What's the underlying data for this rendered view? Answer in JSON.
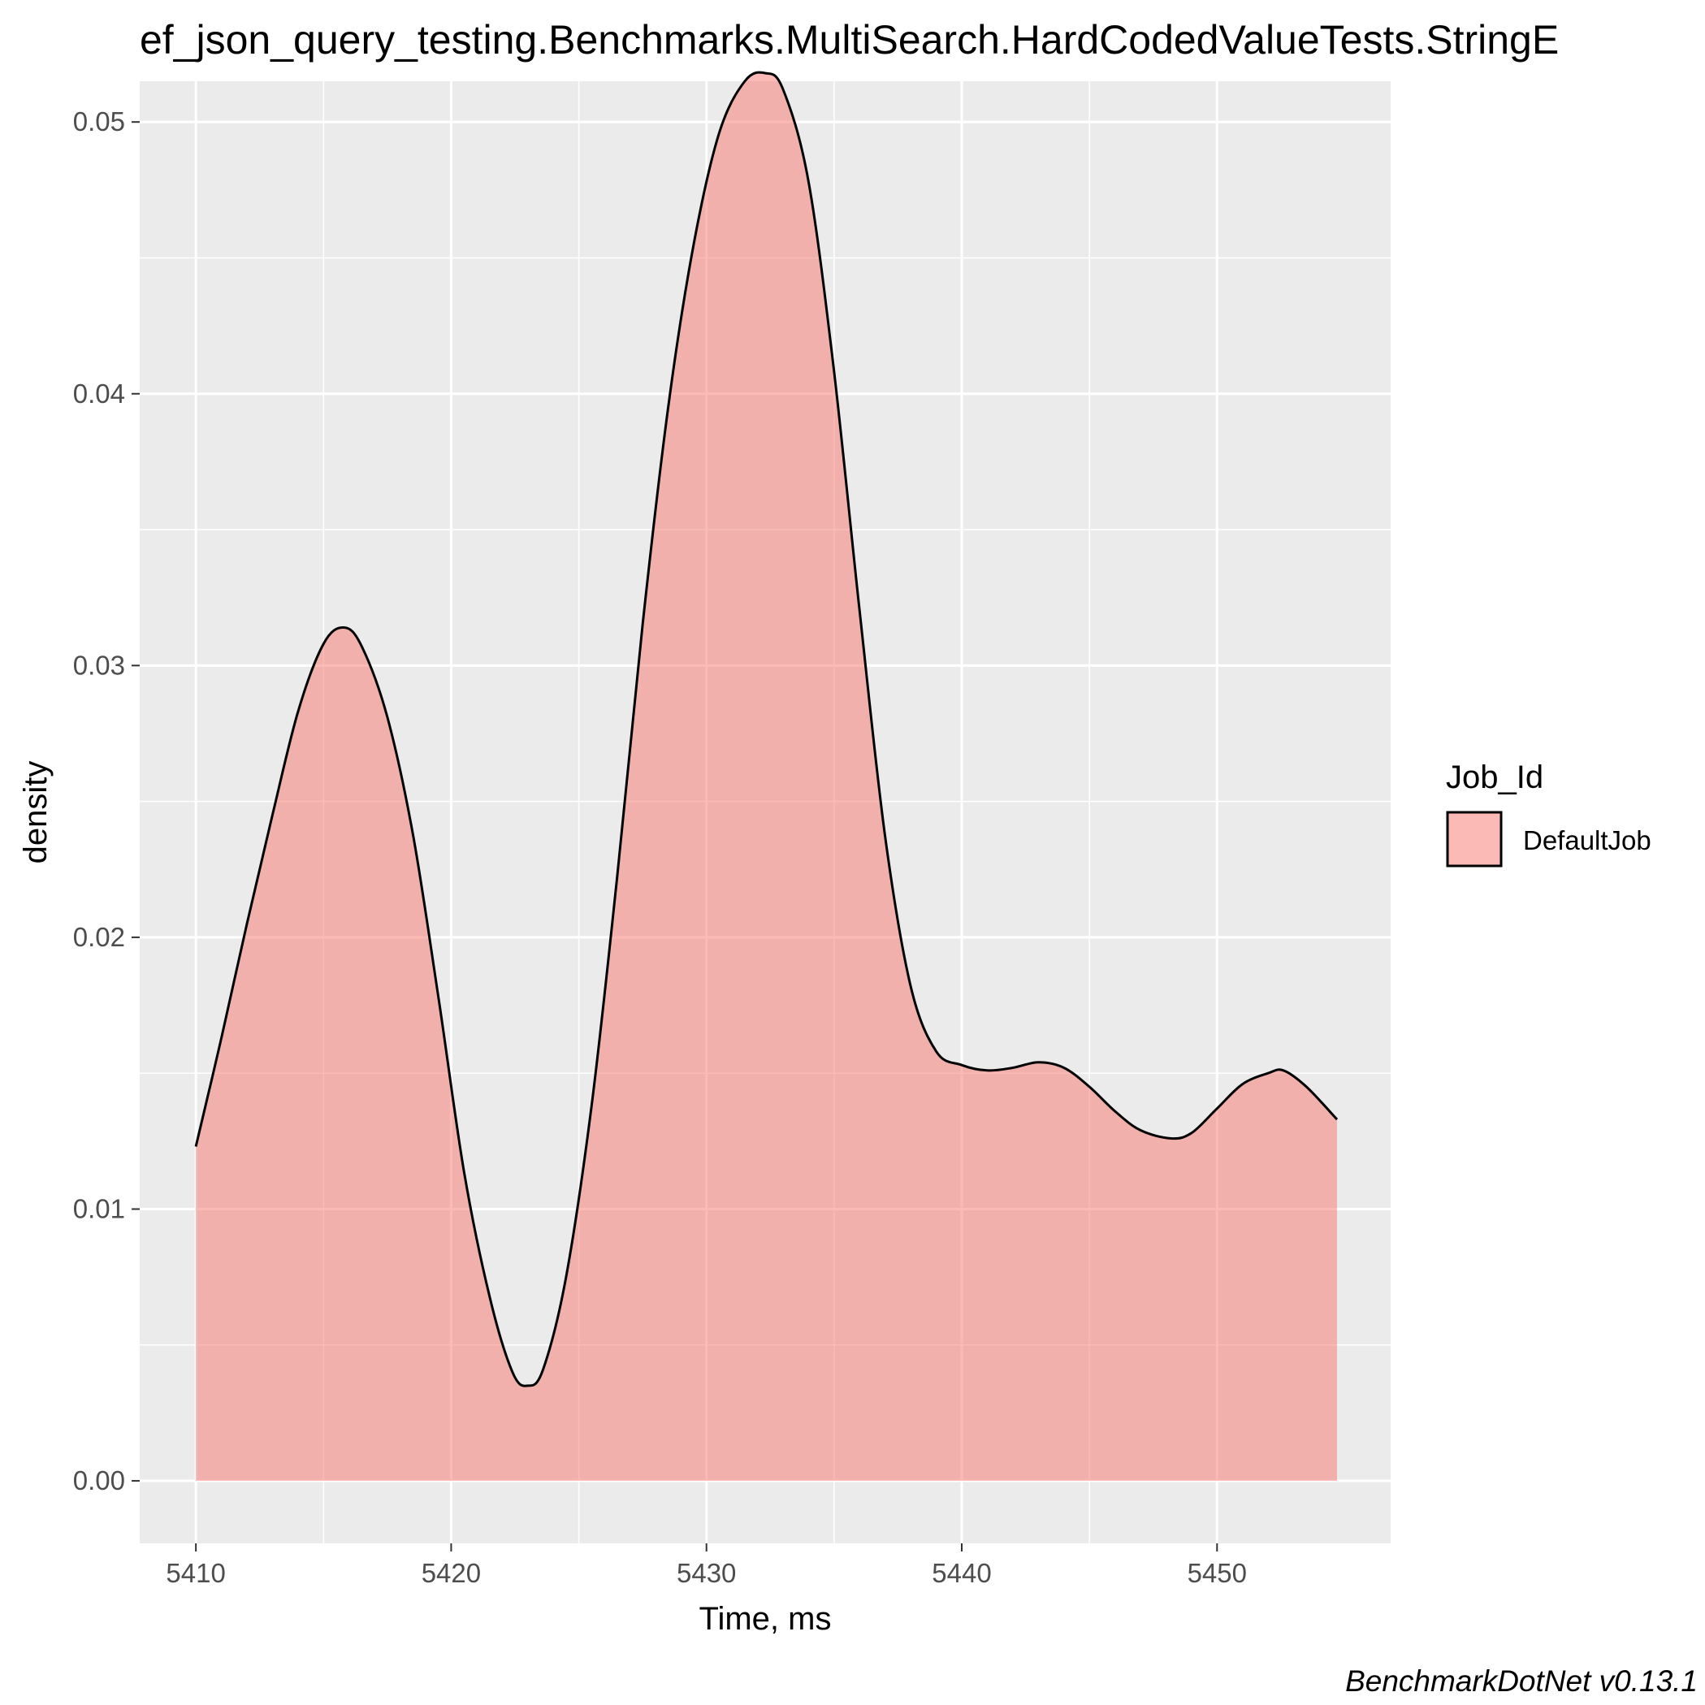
{
  "chart_data": {
    "type": "area",
    "title": "ef_json_query_testing.Benchmarks.MultiSearch.HardCodedValueTests.StringE",
    "xlabel": "Time, ms",
    "ylabel": "density",
    "caption": "BenchmarkDotNet v0.13.1",
    "xlim": [
      5407.8,
      5456.8
    ],
    "ylim": [
      -0.0023,
      0.0515
    ],
    "x_ticks": [
      5410,
      5420,
      5430,
      5440,
      5450
    ],
    "x_tick_labels": [
      "5410",
      "5420",
      "5430",
      "5440",
      "5450"
    ],
    "y_ticks": [
      0,
      0.01,
      0.02,
      0.03,
      0.04,
      0.05
    ],
    "y_tick_labels": [
      "0.00",
      "0.01",
      "0.02",
      "0.03",
      "0.04",
      "0.05"
    ],
    "grid": true,
    "legend": {
      "title": "Job_Id",
      "position": "right",
      "entries": [
        "DefaultJob"
      ]
    },
    "series": [
      {
        "name": "DefaultJob",
        "fill": "#F8766D",
        "fill_opacity": 0.5,
        "line_color": "#000000",
        "x": [
          5410,
          5411,
          5412,
          5413,
          5414,
          5415,
          5415.8,
          5416.5,
          5417.5,
          5418.5,
          5419.5,
          5420.5,
          5421.5,
          5422.4,
          5423,
          5423.6,
          5424.5,
          5425.5,
          5426.5,
          5427.5,
          5428.5,
          5429.5,
          5430.5,
          5431.5,
          5432.3,
          5433,
          5434,
          5435,
          5436,
          5437,
          5438,
          5439,
          5440,
          5441,
          5442,
          5443,
          5444,
          5445,
          5446,
          5447,
          5448.2,
          5449,
          5450,
          5451,
          5452,
          5452.6,
          5453.5,
          5454.7
        ],
        "y": [
          0.0123,
          0.0163,
          0.0205,
          0.0245,
          0.0283,
          0.0308,
          0.0314,
          0.0307,
          0.0281,
          0.0238,
          0.0178,
          0.0114,
          0.0068,
          0.004,
          0.0035,
          0.0041,
          0.0075,
          0.0138,
          0.0222,
          0.0315,
          0.0395,
          0.0455,
          0.0496,
          0.0515,
          0.0518,
          0.0512,
          0.0478,
          0.0408,
          0.032,
          0.0237,
          0.0182,
          0.0158,
          0.0153,
          0.0151,
          0.0152,
          0.0154,
          0.0152,
          0.0145,
          0.0136,
          0.0129,
          0.0126,
          0.0128,
          0.0137,
          0.0146,
          0.015,
          0.0151,
          0.0145,
          0.0133
        ]
      }
    ]
  }
}
